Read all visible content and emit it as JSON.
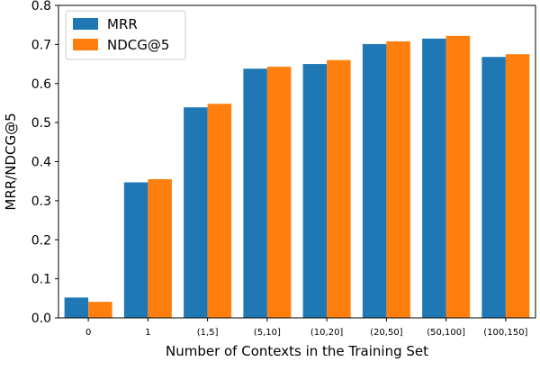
{
  "chart_data": {
    "type": "bar",
    "title": "",
    "xlabel": "Number of Contexts in the Training Set",
    "ylabel": "MRR/NDCG@5",
    "ylim": [
      0,
      0.8
    ],
    "yticks": [
      "0.0",
      "0.1",
      "0.2",
      "0.3",
      "0.4",
      "0.5",
      "0.6",
      "0.7",
      "0.8"
    ],
    "categories": [
      "0",
      "1",
      "(1,5]",
      "(5,10]",
      "(10,20]",
      "(20,50]",
      "(50,100]",
      "(100,150]"
    ],
    "series": [
      {
        "name": "MRR",
        "color": "#1f77b4",
        "values": [
          0.052,
          0.347,
          0.539,
          0.638,
          0.65,
          0.701,
          0.715,
          0.668
        ]
      },
      {
        "name": "NDCG@5",
        "color": "#ff7f0e",
        "values": [
          0.041,
          0.355,
          0.548,
          0.643,
          0.66,
          0.708,
          0.722,
          0.675
        ]
      }
    ],
    "grid": false,
    "legend_position": "top-left"
  }
}
